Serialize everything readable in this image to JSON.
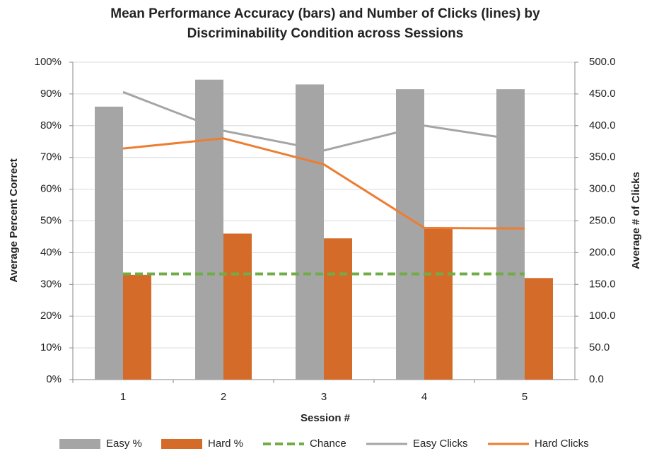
{
  "chart_data": {
    "type": "combo",
    "title": [
      "Mean Performance Accuracy (bars) and Number of Clicks (lines) by",
      "Discriminability Condition across Sessions"
    ],
    "x_label": "Session #",
    "y_label": "Average Percent Correct",
    "y2_label": "Average # of Clicks",
    "categories": [
      "1",
      "2",
      "3",
      "4",
      "5"
    ],
    "ylim": [
      0,
      100
    ],
    "yticks": [
      {
        "value": 0,
        "label": "0%"
      },
      {
        "value": 10,
        "label": "10%"
      },
      {
        "value": 20,
        "label": "20%"
      },
      {
        "value": 30,
        "label": "30%"
      },
      {
        "value": 40,
        "label": "40%"
      },
      {
        "value": 50,
        "label": "50%"
      },
      {
        "value": 60,
        "label": "60%"
      },
      {
        "value": 70,
        "label": "70%"
      },
      {
        "value": 80,
        "label": "80%"
      },
      {
        "value": 90,
        "label": "90%"
      },
      {
        "value": 100,
        "label": "100%"
      }
    ],
    "y2lim": [
      0,
      500
    ],
    "y2ticks": [
      {
        "value": 0,
        "label": "0.0"
      },
      {
        "value": 50,
        "label": "50.0"
      },
      {
        "value": 100,
        "label": "100.0"
      },
      {
        "value": 150,
        "label": "150.0"
      },
      {
        "value": 200,
        "label": "200.0"
      },
      {
        "value": 250,
        "label": "250.0"
      },
      {
        "value": 300,
        "label": "300.0"
      },
      {
        "value": 350,
        "label": "350.0"
      },
      {
        "value": 400,
        "label": "400.0"
      },
      {
        "value": 450,
        "label": "450.0"
      },
      {
        "value": 500,
        "label": "500.0"
      }
    ],
    "grid": true,
    "legend": "bottom",
    "series": [
      {
        "name": "Easy %",
        "kind": "bar",
        "color": "#a5a5a5",
        "values": [
          86,
          94.5,
          93,
          91.5,
          91.5
        ]
      },
      {
        "name": "Hard %",
        "kind": "bar",
        "color": "#d46b29",
        "values": [
          33,
          46,
          44.5,
          47.5,
          32
        ]
      },
      {
        "name": "Chance",
        "kind": "line",
        "dash": true,
        "color": "#70ad47",
        "values": [
          33.3,
          33.3,
          33.3,
          33.3,
          33.3
        ]
      },
      {
        "name": "Easy Clicks",
        "kind": "line",
        "axis": "y2",
        "color": "#a5a5a5",
        "values": [
          453,
          392,
          361,
          400,
          376
        ]
      },
      {
        "name": "Hard Clicks",
        "kind": "line",
        "axis": "y2",
        "color": "#ed7d31",
        "values": [
          364,
          380,
          339,
          239,
          238
        ]
      }
    ]
  }
}
